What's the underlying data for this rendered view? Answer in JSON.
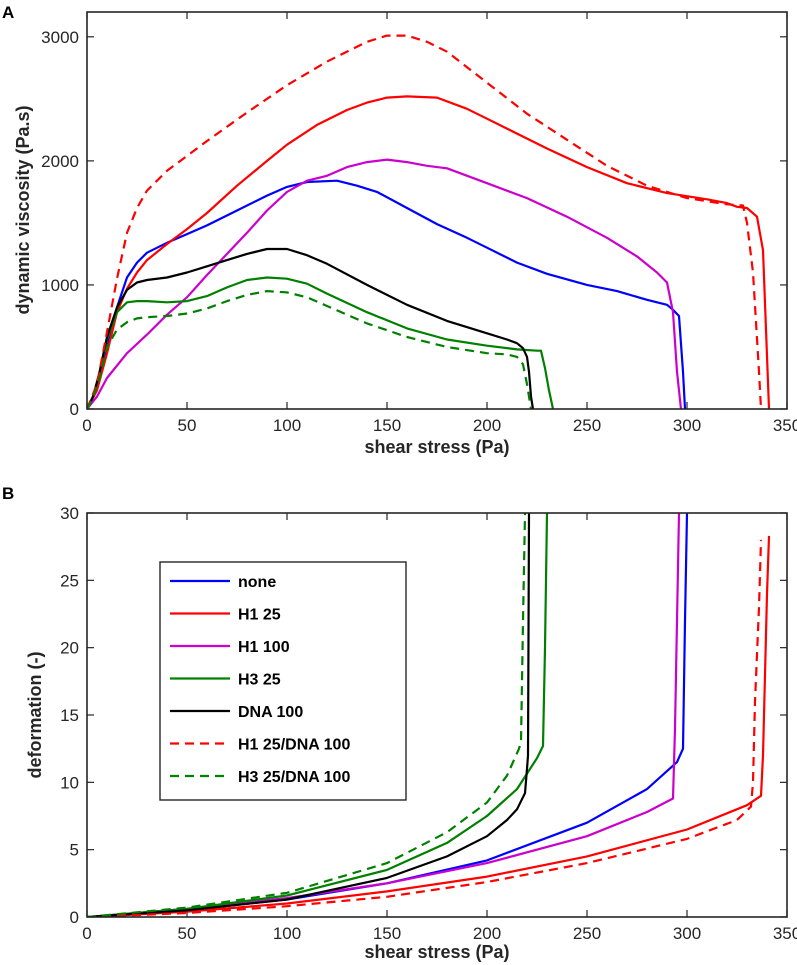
{
  "chart_data": [
    {
      "panel": "A",
      "type": "line",
      "xlabel": "shear stress (Pa)",
      "ylabel": "dynamic viscosity (Pa.s)",
      "xlim": [
        0,
        350
      ],
      "ylim": [
        0,
        3200
      ],
      "xticks": [
        0,
        50,
        100,
        150,
        200,
        250,
        300,
        350
      ],
      "yticks": [
        0,
        1000,
        2000,
        3000
      ],
      "series": [
        {
          "name": "none",
          "color": "#0000ff",
          "dash": "solid",
          "x": [
            0,
            3,
            6,
            10,
            15,
            20,
            25,
            30,
            40,
            50,
            60,
            75,
            90,
            100,
            110,
            125,
            135,
            145,
            160,
            175,
            190,
            200,
            215,
            230,
            250,
            265,
            280,
            290,
            293,
            296,
            298,
            299
          ],
          "y": [
            0,
            100,
            250,
            520,
            820,
            1060,
            1180,
            1260,
            1340,
            1410,
            1480,
            1600,
            1720,
            1790,
            1830,
            1840,
            1800,
            1750,
            1620,
            1490,
            1380,
            1300,
            1180,
            1090,
            1000,
            950,
            880,
            840,
            800,
            750,
            300,
            0
          ]
        },
        {
          "name": "H1 25",
          "color": "#ff0000",
          "dash": "solid",
          "x": [
            0,
            5,
            10,
            15,
            20,
            25,
            30,
            40,
            50,
            60,
            75,
            90,
            100,
            115,
            130,
            140,
            150,
            160,
            175,
            190,
            200,
            215,
            230,
            250,
            270,
            290,
            310,
            320,
            325,
            330,
            335,
            338,
            341
          ],
          "y": [
            0,
            150,
            450,
            780,
            970,
            1100,
            1200,
            1330,
            1450,
            1580,
            1800,
            2000,
            2130,
            2290,
            2410,
            2470,
            2510,
            2520,
            2510,
            2420,
            2340,
            2220,
            2100,
            1950,
            1820,
            1740,
            1690,
            1660,
            1630,
            1620,
            1550,
            1280,
            0
          ]
        },
        {
          "name": "H1 100",
          "color": "#cc00cc",
          "dash": "solid",
          "x": [
            0,
            5,
            10,
            20,
            30,
            40,
            50,
            60,
            70,
            80,
            90,
            100,
            110,
            120,
            130,
            140,
            150,
            160,
            170,
            180,
            200,
            220,
            240,
            260,
            275,
            285,
            290,
            293,
            295,
            297
          ],
          "y": [
            0,
            100,
            250,
            450,
            600,
            760,
            900,
            1080,
            1250,
            1420,
            1600,
            1750,
            1840,
            1880,
            1950,
            1990,
            2010,
            1990,
            1960,
            1940,
            1820,
            1700,
            1550,
            1380,
            1230,
            1100,
            1020,
            780,
            300,
            0
          ]
        },
        {
          "name": "H3 25",
          "color": "#008000",
          "dash": "solid",
          "x": [
            0,
            3,
            6,
            10,
            15,
            20,
            25,
            30,
            40,
            50,
            60,
            70,
            80,
            90,
            100,
            110,
            120,
            140,
            160,
            180,
            200,
            215,
            225,
            227,
            229,
            231,
            233
          ],
          "y": [
            0,
            100,
            260,
            560,
            780,
            860,
            870,
            870,
            860,
            870,
            910,
            980,
            1040,
            1060,
            1050,
            1010,
            930,
            780,
            650,
            560,
            510,
            480,
            470,
            470,
            330,
            150,
            0
          ]
        },
        {
          "name": "DNA 100",
          "color": "#000000",
          "dash": "solid",
          "x": [
            0,
            3,
            6,
            10,
            15,
            20,
            25,
            30,
            40,
            50,
            60,
            70,
            80,
            90,
            100,
            110,
            120,
            140,
            160,
            180,
            200,
            210,
            215,
            218,
            220,
            221,
            222,
            223
          ],
          "y": [
            0,
            100,
            280,
            580,
            820,
            960,
            1020,
            1040,
            1060,
            1100,
            1150,
            1200,
            1250,
            1290,
            1290,
            1240,
            1170,
            1000,
            840,
            710,
            610,
            560,
            530,
            490,
            420,
            300,
            100,
            0
          ]
        },
        {
          "name": "H1 25/DNA 100",
          "color": "#ff0000",
          "dash": "dashed",
          "x": [
            0,
            5,
            10,
            15,
            20,
            25,
            30,
            40,
            50,
            60,
            80,
            100,
            120,
            140,
            150,
            160,
            170,
            180,
            200,
            220,
            240,
            260,
            280,
            300,
            320,
            328,
            330,
            333,
            336,
            337
          ],
          "y": [
            0,
            200,
            620,
            1050,
            1420,
            1620,
            1760,
            1920,
            2040,
            2160,
            2390,
            2610,
            2800,
            2960,
            3010,
            3010,
            2960,
            2880,
            2630,
            2380,
            2170,
            1960,
            1800,
            1700,
            1650,
            1640,
            1500,
            1100,
            300,
            0
          ]
        },
        {
          "name": "H3 25/DNA 100",
          "color": "#008000",
          "dash": "dashed",
          "x": [
            0,
            3,
            6,
            10,
            15,
            20,
            25,
            30,
            40,
            50,
            60,
            70,
            80,
            90,
            100,
            110,
            120,
            140,
            160,
            180,
            200,
            210,
            215,
            218,
            220,
            222
          ],
          "y": [
            0,
            90,
            230,
            500,
            640,
            700,
            730,
            740,
            750,
            770,
            810,
            870,
            920,
            950,
            940,
            900,
            830,
            690,
            580,
            500,
            450,
            440,
            420,
            360,
            200,
            0
          ]
        }
      ]
    },
    {
      "panel": "B",
      "type": "line",
      "xlabel": "shear stress (Pa)",
      "ylabel": "deformation (-)",
      "xlim": [
        0,
        350
      ],
      "ylim": [
        0,
        30
      ],
      "xticks": [
        0,
        50,
        100,
        150,
        200,
        250,
        300,
        350
      ],
      "yticks": [
        0,
        5,
        10,
        15,
        20,
        25,
        30
      ],
      "legend_position": "upper-left",
      "series": [
        {
          "name": "none",
          "color": "#0000ff",
          "dash": "solid",
          "x": [
            0,
            50,
            100,
            150,
            200,
            250,
            280,
            295,
            298,
            299,
            300
          ],
          "y": [
            0,
            0.5,
            1.3,
            2.5,
            4.2,
            7.0,
            9.5,
            11.5,
            12.5,
            22,
            30
          ]
        },
        {
          "name": "H1 25",
          "color": "#ff0000",
          "dash": "solid",
          "x": [
            0,
            50,
            100,
            150,
            200,
            250,
            300,
            330,
            337,
            338,
            339,
            340,
            341
          ],
          "y": [
            0,
            0.4,
            1.0,
            1.9,
            3.0,
            4.5,
            6.5,
            8.3,
            9.0,
            12,
            18,
            24,
            28.3
          ]
        },
        {
          "name": "H1 100",
          "color": "#cc00cc",
          "dash": "solid",
          "x": [
            0,
            50,
            100,
            150,
            200,
            250,
            280,
            293,
            294,
            295,
            296
          ],
          "y": [
            0,
            0.6,
            1.4,
            2.5,
            4.0,
            6.0,
            7.8,
            8.8,
            14,
            22,
            30
          ]
        },
        {
          "name": "H3 25",
          "color": "#008000",
          "dash": "solid",
          "x": [
            0,
            50,
            100,
            150,
            180,
            200,
            215,
            225,
            228,
            229,
            230
          ],
          "y": [
            0,
            0.6,
            1.6,
            3.5,
            5.5,
            7.5,
            9.5,
            11.8,
            12.7,
            20,
            30
          ]
        },
        {
          "name": "DNA 100",
          "color": "#000000",
          "dash": "solid",
          "x": [
            0,
            50,
            100,
            150,
            180,
            200,
            210,
            215,
            219,
            220,
            220.5,
            221
          ],
          "y": [
            0,
            0.5,
            1.3,
            2.9,
            4.5,
            6.0,
            7.2,
            8.0,
            9.2,
            11,
            12,
            30
          ]
        },
        {
          "name": "H1 25/DNA 100",
          "color": "#ff0000",
          "dash": "dashed",
          "x": [
            0,
            50,
            100,
            150,
            200,
            250,
            300,
            325,
            332,
            333,
            334,
            336,
            337
          ],
          "y": [
            0,
            0.3,
            0.8,
            1.5,
            2.6,
            4.0,
            5.8,
            7.2,
            8.2,
            10,
            16,
            23,
            28
          ]
        },
        {
          "name": "H3 25/DNA 100",
          "color": "#008000",
          "dash": "dashed",
          "x": [
            0,
            50,
            100,
            150,
            180,
            200,
            210,
            216,
            217,
            218,
            219
          ],
          "y": [
            0,
            0.7,
            1.8,
            4.0,
            6.3,
            8.5,
            10.5,
            12.5,
            13.0,
            22,
            30
          ]
        }
      ]
    }
  ]
}
